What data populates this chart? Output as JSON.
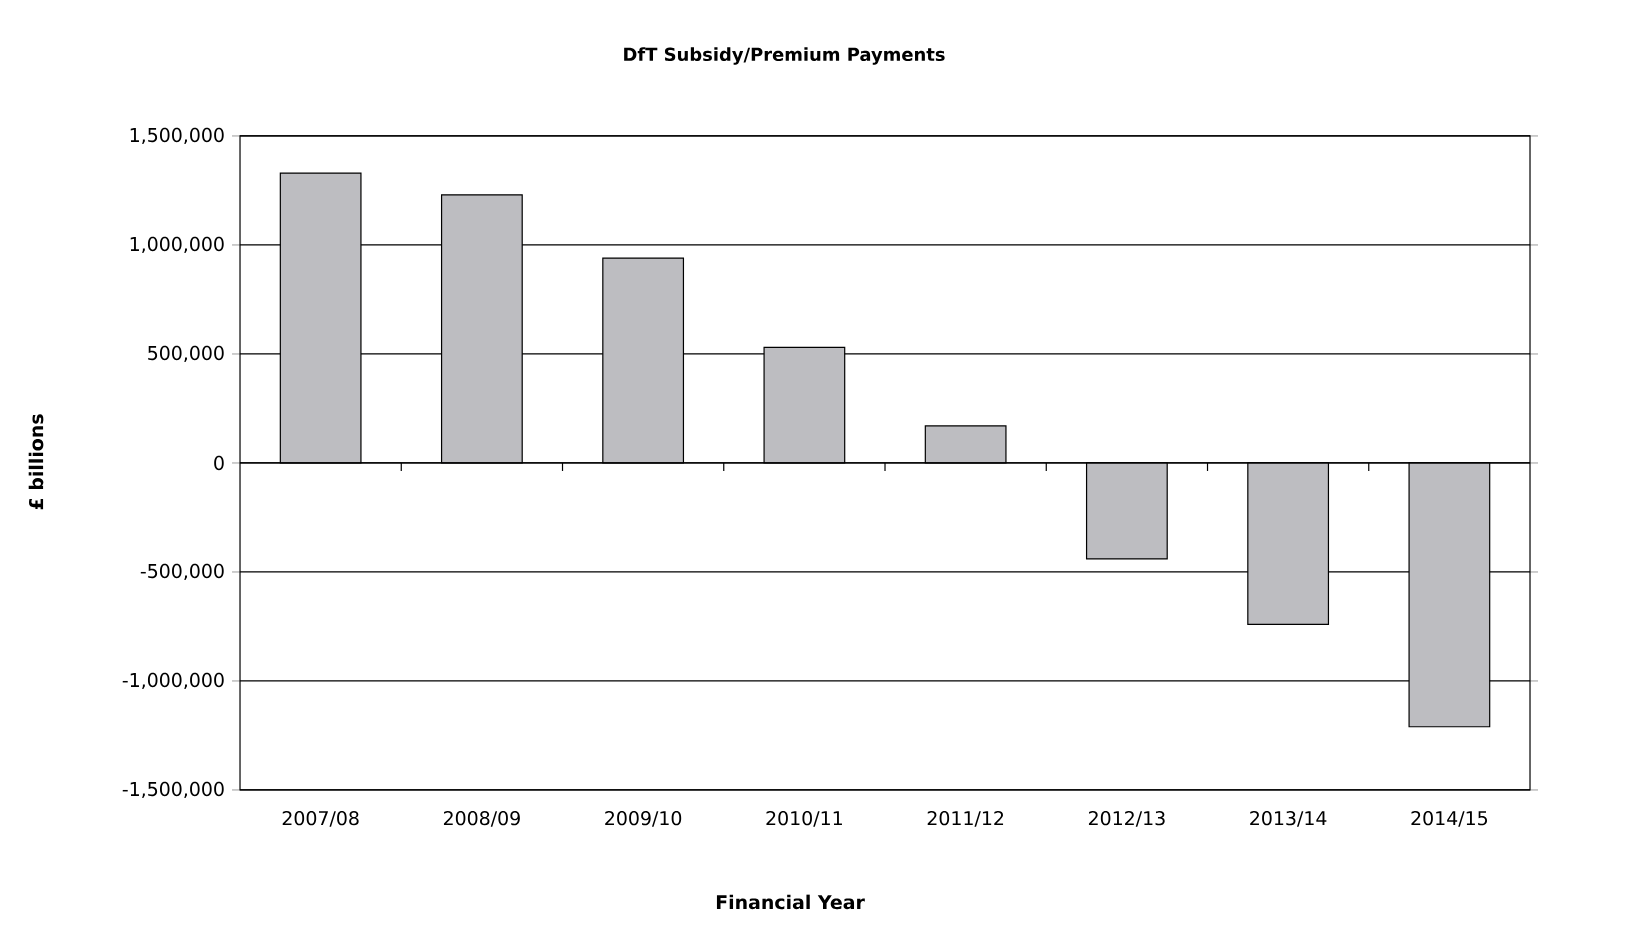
{
  "chart_data": {
    "type": "bar",
    "title": "DfT Subsidy/Premium Payments",
    "xlabel": "Financial Year",
    "ylabel": "£ billions",
    "categories": [
      "2007/08",
      "2008/09",
      "2009/10",
      "2010/11",
      "2011/12",
      "2012/13",
      "2013/14",
      "2014/15"
    ],
    "values": [
      1330000,
      1230000,
      940000,
      530000,
      170000,
      -440000,
      -740000,
      -1210000
    ],
    "color": "#bdbdc1",
    "ylim": [
      -1500000,
      1500000
    ],
    "yticks": [
      {
        "value": -1500000,
        "label": "-1,500,000"
      },
      {
        "value": -1000000,
        "label": "-1,000,000"
      },
      {
        "value": -500000,
        "label": "-500,000"
      },
      {
        "value": 0,
        "label": "0"
      },
      {
        "value": 500000,
        "label": "500,000"
      },
      {
        "value": 1000000,
        "label": "1,000,000"
      },
      {
        "value": 1500000,
        "label": "1,500,000"
      }
    ],
    "grid": "y"
  }
}
